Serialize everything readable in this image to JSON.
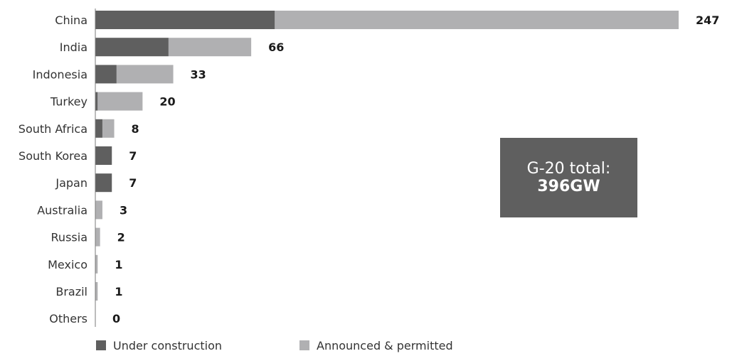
{
  "chart_data": {
    "type": "bar",
    "orientation": "horizontal",
    "stacked": true,
    "categories": [
      "China",
      "India",
      "Indonesia",
      "Turkey",
      "South Africa",
      "South Korea",
      "Japan",
      "Australia",
      "Russia",
      "Mexico",
      "Brazil",
      "Others"
    ],
    "series": [
      {
        "name": "Under construction",
        "values": [
          76,
          31,
          9,
          1,
          3,
          7,
          7,
          0,
          0,
          0,
          0,
          0
        ]
      },
      {
        "name": "Announced & permitted",
        "values": [
          171,
          35,
          24,
          19,
          5,
          0,
          0,
          3,
          2,
          1,
          1,
          0
        ]
      }
    ],
    "totals": [
      247,
      66,
      33,
      20,
      8,
      7,
      7,
      3,
      2,
      1,
      1,
      0
    ],
    "xlim": [
      0,
      247
    ],
    "grid": false,
    "legend_position": "bottom",
    "colors": {
      "Under construction": "#5f5f5f",
      "Announced & permitted": "#b0b0b2"
    },
    "annotation": {
      "line1": "G-20 total:",
      "line2": "396GW"
    }
  }
}
